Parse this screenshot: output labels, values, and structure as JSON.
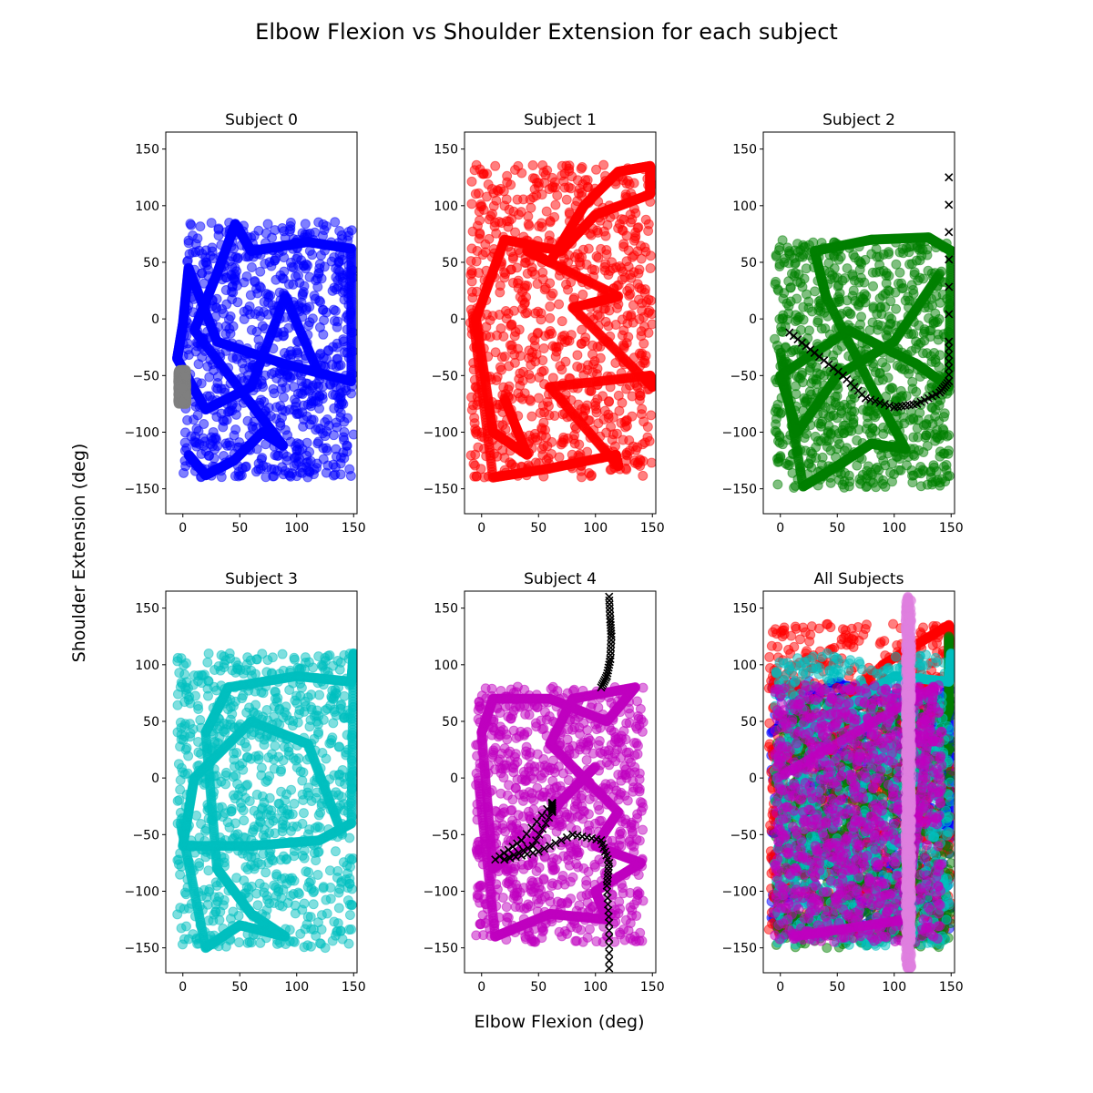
{
  "figure": {
    "title": "Elbow Flexion vs Shoulder Extension for each subject",
    "xlabel": "Elbow Flexion (deg)",
    "ylabel": "Shoulder Extension (deg)"
  },
  "chart_data": [
    {
      "type": "scatter",
      "title": "Subject 0",
      "xlim": [
        -15,
        153
      ],
      "ylim": [
        -172,
        165
      ],
      "xticks": [
        0,
        50,
        100,
        150
      ],
      "yticks": [
        -150,
        -100,
        -50,
        0,
        50,
        100,
        150
      ],
      "grid": false,
      "series": [
        {
          "color": "#0000ff",
          "marker": "circle",
          "region": {
            "x": [
              0,
              150
            ],
            "y": [
              -140,
              86
            ]
          },
          "path": [
            [
              5,
              -120
            ],
            [
              20,
              -138
            ],
            [
              45,
              -125
            ],
            [
              70,
              -100
            ],
            [
              88,
              -112
            ],
            [
              60,
              -75
            ],
            [
              10,
              -10
            ],
            [
              30,
              40
            ],
            [
              46,
              84
            ],
            [
              60,
              60
            ],
            [
              110,
              68
            ],
            [
              148,
              62
            ],
            [
              148,
              -55
            ],
            [
              90,
              -40
            ],
            [
              30,
              -20
            ],
            [
              5,
              45
            ],
            [
              0,
              -5
            ],
            [
              -5,
              -35
            ],
            [
              20,
              -80
            ],
            [
              60,
              -60
            ],
            [
              90,
              20
            ],
            [
              120,
              -50
            ]
          ]
        },
        {
          "color": "#808080",
          "marker": "circle",
          "region": {
            "x": [
              -4,
              3
            ],
            "y": [
              -75,
              -45
            ]
          },
          "path": []
        }
      ]
    },
    {
      "type": "scatter",
      "title": "Subject 1",
      "xlim": [
        -15,
        153
      ],
      "ylim": [
        -172,
        165
      ],
      "xticks": [
        0,
        50,
        100,
        150
      ],
      "yticks": [
        -150,
        -100,
        -50,
        0,
        50,
        100,
        150
      ],
      "grid": false,
      "series": [
        {
          "color": "#ff0000",
          "marker": "circle",
          "region": {
            "x": [
              -10,
              150
            ],
            "y": [
              -140,
              136
            ]
          },
          "path": [
            [
              -8,
              5
            ],
            [
              10,
              -140
            ],
            [
              60,
              -132
            ],
            [
              118,
              -120
            ],
            [
              120,
              -130
            ],
            [
              60,
              -60
            ],
            [
              148,
              -50
            ],
            [
              150,
              -60
            ],
            [
              80,
              10
            ],
            [
              120,
              20
            ],
            [
              40,
              60
            ],
            [
              60,
              50
            ],
            [
              90,
              100
            ],
            [
              120,
              130
            ],
            [
              148,
              135
            ],
            [
              148,
              110
            ],
            [
              100,
              92
            ],
            [
              70,
              60
            ],
            [
              20,
              70
            ],
            [
              -5,
              0
            ],
            [
              10,
              -100
            ],
            [
              40,
              -120
            ],
            [
              20,
              -70
            ]
          ]
        }
      ]
    },
    {
      "type": "scatter",
      "title": "Subject 2",
      "xlim": [
        -15,
        153
      ],
      "ylim": [
        -172,
        165
      ],
      "xticks": [
        0,
        50,
        100,
        150
      ],
      "yticks": [
        -150,
        -100,
        -50,
        0,
        50,
        100,
        150
      ],
      "grid": false,
      "series": [
        {
          "color": "#008000",
          "marker": "circle",
          "region": {
            "x": [
              -5,
              150
            ],
            "y": [
              -150,
              70
            ]
          },
          "path": [
            [
              0,
              -30
            ],
            [
              20,
              -148
            ],
            [
              50,
              -130
            ],
            [
              80,
              -110
            ],
            [
              110,
              -115
            ],
            [
              80,
              -60
            ],
            [
              40,
              20
            ],
            [
              30,
              60
            ],
            [
              80,
              70
            ],
            [
              130,
              72
            ],
            [
              150,
              60
            ],
            [
              148,
              -60
            ],
            [
              120,
              -40
            ],
            [
              60,
              -10
            ],
            [
              0,
              -50
            ],
            [
              15,
              -100
            ],
            [
              50,
              -50
            ],
            [
              100,
              -20
            ],
            [
              140,
              40
            ]
          ]
        },
        {
          "color": "#000000",
          "marker": "x",
          "region": {
            "x": [
              5,
              150
            ],
            "y": [
              -80,
              125
            ]
          },
          "path": [
            [
              8,
              -12
            ],
            [
              30,
              -30
            ],
            [
              55,
              -50
            ],
            [
              75,
              -70
            ],
            [
              100,
              -78
            ],
            [
              120,
              -75
            ],
            [
              140,
              -65
            ],
            [
              148,
              -55
            ],
            [
              148,
              -20
            ],
            [
              148,
              125
            ]
          ]
        }
      ]
    },
    {
      "type": "scatter",
      "title": "Subject 3",
      "xlim": [
        -15,
        153
      ],
      "ylim": [
        -172,
        165
      ],
      "xticks": [
        0,
        50,
        100,
        150
      ],
      "yticks": [
        -150,
        -100,
        -50,
        0,
        50,
        100,
        150
      ],
      "grid": false,
      "series": [
        {
          "color": "#00bfbf",
          "marker": "circle",
          "region": {
            "x": [
              -5,
              150
            ],
            "y": [
              -150,
              110
            ]
          },
          "path": [
            [
              -2,
              -40
            ],
            [
              20,
              -150
            ],
            [
              50,
              -130
            ],
            [
              90,
              -140
            ],
            [
              60,
              -120
            ],
            [
              30,
              -80
            ],
            [
              20,
              40
            ],
            [
              40,
              80
            ],
            [
              100,
              90
            ],
            [
              148,
              85
            ],
            [
              150,
              110
            ],
            [
              148,
              -40
            ],
            [
              120,
              -55
            ],
            [
              60,
              -60
            ],
            [
              0,
              -60
            ],
            [
              10,
              0
            ],
            [
              60,
              50
            ],
            [
              110,
              30
            ],
            [
              140,
              -50
            ]
          ]
        }
      ]
    },
    {
      "type": "scatter",
      "title": "Subject 4",
      "xlim": [
        -15,
        153
      ],
      "ylim": [
        -172,
        165
      ],
      "xticks": [
        0,
        50,
        100,
        150
      ],
      "yticks": [
        -150,
        -100,
        -50,
        0,
        50,
        100,
        150
      ],
      "grid": false,
      "series": [
        {
          "color": "#bf00bf",
          "marker": "circle",
          "region": {
            "x": [
              -5,
              142
            ],
            "y": [
              -145,
              82
            ]
          },
          "path": [
            [
              -3,
              0
            ],
            [
              12,
              -140
            ],
            [
              60,
              -120
            ],
            [
              110,
              -125
            ],
            [
              100,
              -100
            ],
            [
              140,
              -75
            ],
            [
              100,
              -60
            ],
            [
              120,
              -30
            ],
            [
              60,
              30
            ],
            [
              80,
              70
            ],
            [
              135,
              80
            ],
            [
              110,
              50
            ],
            [
              60,
              70
            ],
            [
              10,
              70
            ],
            [
              0,
              40
            ],
            [
              10,
              -80
            ],
            [
              40,
              -60
            ],
            [
              70,
              -20
            ],
            [
              100,
              10
            ]
          ]
        },
        {
          "color": "#000000",
          "marker": "x",
          "region": {
            "x": [
              10,
              115
            ],
            "y": [
              -168,
              160
            ]
          },
          "path": [
            [
              12,
              -72
            ],
            [
              35,
              -55
            ],
            [
              62,
              -22
            ],
            [
              62,
              -30
            ],
            [
              45,
              -60
            ],
            [
              20,
              -72
            ],
            [
              50,
              -65
            ],
            [
              80,
              -50
            ],
            [
              105,
              -55
            ],
            [
              112,
              -75
            ],
            [
              110,
              -95
            ],
            [
              112,
              -128
            ],
            [
              112,
              -168
            ]
          ]
        },
        {
          "color": "#000000",
          "marker": "x",
          "region": {
            "x": [
              105,
              115
            ],
            "y": [
              75,
              160
            ]
          },
          "path": [
            [
              105,
              80
            ],
            [
              110,
              90
            ],
            [
              113,
              105
            ],
            [
              114,
              125
            ],
            [
              113,
              140
            ],
            [
              112,
              160
            ]
          ]
        }
      ]
    },
    {
      "type": "scatter",
      "title": "All Subjects",
      "xlim": [
        -15,
        153
      ],
      "ylim": [
        -172,
        165
      ],
      "xticks": [
        0,
        50,
        100,
        150
      ],
      "yticks": [
        -150,
        -100,
        -50,
        0,
        50,
        100,
        150
      ],
      "grid": false,
      "series": [
        {
          "color": "#0000ff",
          "marker": "circle",
          "region": {
            "x": [
              -8,
              150
            ],
            "y": [
              -140,
              86
            ]
          },
          "path": [
            [
              -8,
              40
            ],
            [
              46,
              84
            ],
            [
              148,
              62
            ],
            [
              148,
              -55
            ]
          ]
        },
        {
          "color": "#ff0000",
          "marker": "circle",
          "region": {
            "x": [
              -10,
              150
            ],
            "y": [
              -140,
              136
            ]
          },
          "path": [
            [
              -8,
              5
            ],
            [
              90,
              100
            ],
            [
              148,
              135
            ],
            [
              148,
              110
            ]
          ]
        },
        {
          "color": "#008000",
          "marker": "circle",
          "region": {
            "x": [
              -5,
              150
            ],
            "y": [
              -150,
              70
            ]
          },
          "path": [
            [
              100,
              -20
            ],
            [
              140,
              40
            ],
            [
              148,
              60
            ],
            [
              148,
              125
            ]
          ]
        },
        {
          "color": "#00bfbf",
          "marker": "circle",
          "region": {
            "x": [
              -5,
              150
            ],
            "y": [
              -150,
              110
            ]
          },
          "path": [
            [
              20,
              40
            ],
            [
              100,
              90
            ],
            [
              148,
              85
            ],
            [
              150,
              110
            ]
          ]
        },
        {
          "color": "#bf00bf",
          "marker": "circle",
          "region": {
            "x": [
              -5,
              142
            ],
            "y": [
              -145,
              82
            ]
          },
          "path": [
            [
              -3,
              0
            ],
            [
              135,
              80
            ],
            [
              110,
              -125
            ],
            [
              12,
              -140
            ]
          ]
        },
        {
          "color": "#e080e0",
          "marker": "circle",
          "region": {
            "x": [
              110,
              115
            ],
            "y": [
              -168,
              160
            ]
          },
          "path": [
            [
              112,
              160
            ],
            [
              113,
              125
            ],
            [
              112,
              -95
            ],
            [
              112,
              -168
            ]
          ]
        }
      ]
    }
  ]
}
